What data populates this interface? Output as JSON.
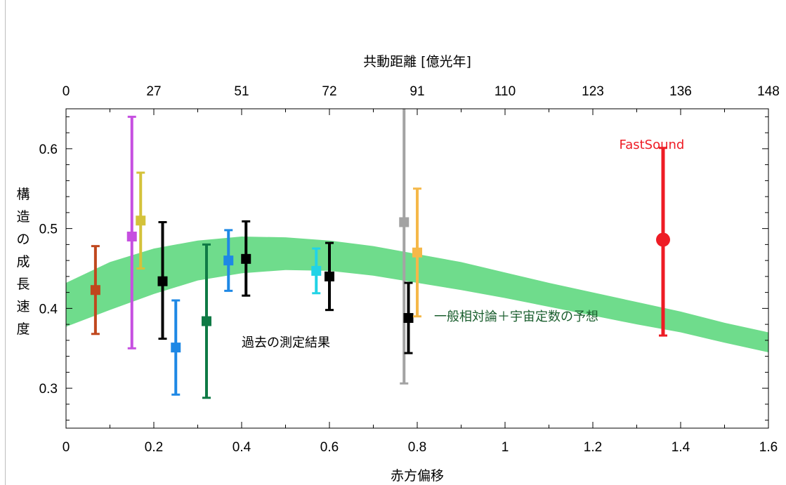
{
  "chart_data": {
    "type": "scatter",
    "xlabel": "赤方偏移",
    "ylabel": "構造の成長速度",
    "top_axis_label": "共動距離 [億光年]",
    "xlim": [
      0,
      1.6
    ],
    "ylim": [
      0.25,
      0.65
    ],
    "x_ticks": [
      0,
      0.2,
      0.4,
      0.6,
      0.8,
      1,
      1.2,
      1.4,
      1.6
    ],
    "x_tick_labels": [
      "0",
      "0.2",
      "0.4",
      "0.6",
      "0.8",
      "1",
      "1.2",
      "1.4",
      "1.6"
    ],
    "y_ticks": [
      0.3,
      0.4,
      0.5,
      0.6
    ],
    "y_tick_labels": [
      "0.3",
      "0.4",
      "0.5",
      "0.6"
    ],
    "top_ticks": [
      0,
      0.2,
      0.4,
      0.6,
      0.8,
      1,
      1.2,
      1.4,
      1.6
    ],
    "top_tick_labels": [
      "0",
      "27",
      "51",
      "72",
      "91",
      "110",
      "123",
      "136",
      "148"
    ],
    "band": {
      "label": "一般相対論＋宇宙定数の予想",
      "color": "#6fdc8c",
      "label_color": "#1a5e2e",
      "x": [
        0,
        0.1,
        0.2,
        0.3,
        0.4,
        0.5,
        0.6,
        0.7,
        0.8,
        0.9,
        1.0,
        1.1,
        1.2,
        1.3,
        1.4,
        1.5,
        1.6
      ],
      "lower": [
        0.377,
        0.398,
        0.418,
        0.435,
        0.444,
        0.448,
        0.447,
        0.441,
        0.432,
        0.423,
        0.413,
        0.402,
        0.391,
        0.38,
        0.37,
        0.357,
        0.345
      ],
      "upper": [
        0.432,
        0.458,
        0.475,
        0.485,
        0.49,
        0.489,
        0.485,
        0.478,
        0.468,
        0.458,
        0.445,
        0.432,
        0.42,
        0.408,
        0.396,
        0.382,
        0.37
      ]
    },
    "series": [
      {
        "x": 0.067,
        "y": 0.423,
        "lo": 0.368,
        "hi": 0.478,
        "color": "#c0471d",
        "marker": "square"
      },
      {
        "x": 0.15,
        "y": 0.49,
        "lo": 0.35,
        "hi": 0.64,
        "color": "#c64fe0",
        "marker": "square"
      },
      {
        "x": 0.17,
        "y": 0.51,
        "lo": 0.45,
        "hi": 0.57,
        "color": "#d4c23a",
        "marker": "square"
      },
      {
        "x": 0.22,
        "y": 0.434,
        "lo": 0.362,
        "hi": 0.508,
        "color": "#000000",
        "marker": "square"
      },
      {
        "x": 0.25,
        "y": 0.351,
        "lo": 0.292,
        "hi": 0.41,
        "color": "#1e88e5",
        "marker": "square"
      },
      {
        "x": 0.32,
        "y": 0.384,
        "lo": 0.288,
        "hi": 0.48,
        "color": "#0f7a45",
        "marker": "square"
      },
      {
        "x": 0.37,
        "y": 0.46,
        "lo": 0.422,
        "hi": 0.498,
        "color": "#1e88e5",
        "marker": "square"
      },
      {
        "x": 0.41,
        "y": 0.462,
        "lo": 0.416,
        "hi": 0.509,
        "color": "#000000",
        "marker": "square"
      },
      {
        "x": 0.57,
        "y": 0.447,
        "lo": 0.419,
        "hi": 0.475,
        "color": "#22d3e6",
        "marker": "square"
      },
      {
        "x": 0.6,
        "y": 0.44,
        "lo": 0.398,
        "hi": 0.482,
        "color": "#000000",
        "marker": "square"
      },
      {
        "x": 0.77,
        "y": 0.508,
        "lo": 0.306,
        "hi": 0.66,
        "color": "#a3a3a3",
        "marker": "square"
      },
      {
        "x": 0.78,
        "y": 0.388,
        "lo": 0.344,
        "hi": 0.432,
        "color": "#000000",
        "marker": "square"
      },
      {
        "x": 0.8,
        "y": 0.47,
        "lo": 0.39,
        "hi": 0.55,
        "color": "#f5b849",
        "marker": "square"
      },
      {
        "x": 1.36,
        "y": 0.486,
        "lo": 0.366,
        "hi": 0.601,
        "color": "#ee1c25",
        "marker": "circle"
      }
    ],
    "annotations": [
      {
        "text": "FastSound",
        "x": 1.26,
        "y": 0.6,
        "color": "#ee1c25"
      },
      {
        "text": "過去の測定結果",
        "x": 0.4,
        "y": 0.352,
        "color": "#000000"
      }
    ]
  }
}
